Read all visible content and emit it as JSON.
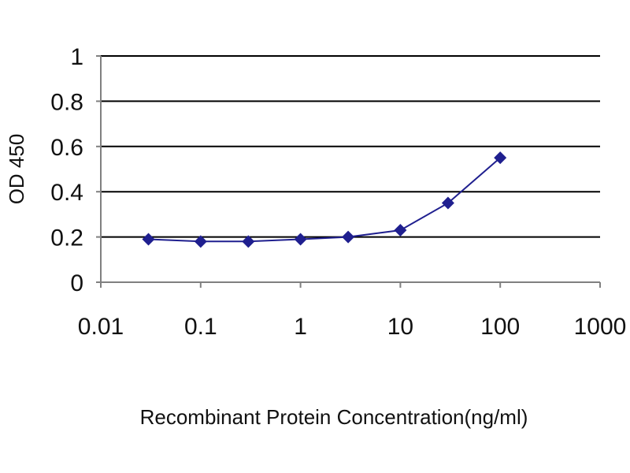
{
  "chart_data": {
    "type": "scatter",
    "title": "",
    "xlabel": "Recombinant Protein Concentration(ng/ml)",
    "ylabel": "OD 450",
    "x_scale": "log",
    "xlim": [
      0.01,
      1000
    ],
    "ylim": [
      0,
      1
    ],
    "x_ticks": [
      {
        "value": 0.01,
        "label": "0.01"
      },
      {
        "value": 0.1,
        "label": "0.1"
      },
      {
        "value": 1,
        "label": "1"
      },
      {
        "value": 10,
        "label": "10"
      },
      {
        "value": 100,
        "label": "100"
      },
      {
        "value": 1000,
        "label": "1000"
      }
    ],
    "y_ticks": [
      {
        "value": 0,
        "label": "0"
      },
      {
        "value": 0.2,
        "label": "0.2"
      },
      {
        "value": 0.4,
        "label": "0.4"
      },
      {
        "value": 0.6,
        "label": "0.6"
      },
      {
        "value": 0.8,
        "label": "0.8"
      },
      {
        "value": 1,
        "label": "1"
      }
    ],
    "grid": "horizontal",
    "legend": "none",
    "series": [
      {
        "marker": "diamond",
        "line": true,
        "x": [
          0.03,
          0.1,
          0.3,
          1,
          3,
          10,
          30,
          100
        ],
        "y": [
          0.19,
          0.18,
          0.18,
          0.19,
          0.2,
          0.23,
          0.35,
          0.55
        ]
      }
    ],
    "colors": {
      "series": "#1f1f8f",
      "gridline": "#000000",
      "axis": "#808080"
    }
  }
}
